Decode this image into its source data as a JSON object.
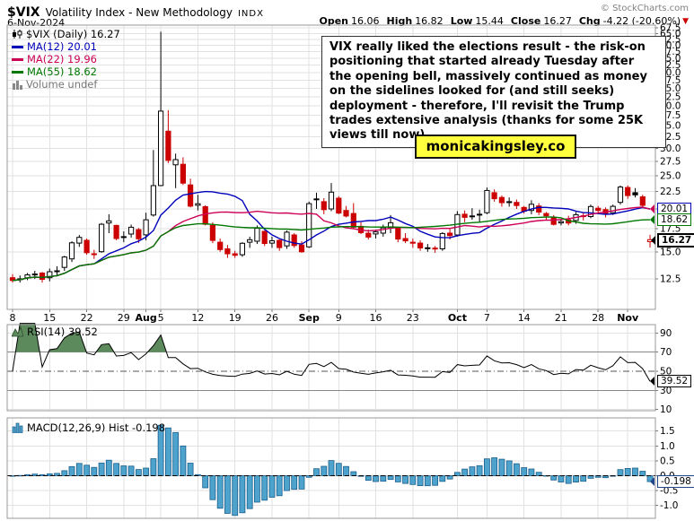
{
  "header": {
    "symbol": "$VIX",
    "title": "Volatility Index - New Methodology",
    "exchange": "INDX",
    "date": "6-Nov-2024",
    "copyright": "© StockCharts.com",
    "quote": {
      "open_label": "Open",
      "open": "16.06",
      "high_label": "High",
      "high": "16.82",
      "low_label": "Low",
      "low": "15.44",
      "close_label": "Close",
      "close": "16.27",
      "chg_label": "Chg",
      "chg": "-4.22 (-20.60%)"
    }
  },
  "legend": {
    "main": "$VIX (Daily) 16.27",
    "ma12": "MA(12) 20.01",
    "ma22": "MA(22) 19.96",
    "ma55": "MA(55) 18.62",
    "volume": "Volume undef"
  },
  "annotation": {
    "text": "VIX really liked the elections result - the risk-on positioning that started already Tuesday after the opening bell, massively continued as money on the sidelines looked for (and still seeks) deployment - therefore, I'll revisit the Trump trades extensive analysis (thanks for some 25K views till now)."
  },
  "watermark": "monicakingsley.co",
  "panels": {
    "rsi_label": "RSI(14) 39.52",
    "macd_label": "MACD(12,26,9) Hist -0.198"
  },
  "badges": {
    "ma12": "20.01",
    "ma55": "18.62",
    "last": "16.27",
    "rsi": "39.52",
    "macd": "-0.198"
  },
  "colors": {
    "candle_down": "#cc0000",
    "candle_up_outline": "#000000",
    "ma12": "#0000bb",
    "ma22": "#cc0055",
    "ma55": "#007700",
    "rsi_line": "#000000",
    "rsi_fill": "#5c8a5c",
    "macd_bar": "#4da3cc",
    "macd_bar_border": "#1b5e8c",
    "grid": "#e2e2e2",
    "panel_border": "#999999",
    "watermark_bg": "#ffff3d",
    "change_arrow": "#cc0000"
  },
  "chart_data": [
    {
      "type": "candlestick",
      "title": "$VIX (Daily)",
      "scale": "log",
      "ylabel": "VIX level",
      "ylim": [
        11.8,
        69.5
      ],
      "y_ticks": [
        12.5,
        15.0,
        17.5,
        20.0,
        22.5,
        25.0,
        27.5,
        30.0,
        32.5,
        35.0,
        37.5,
        40.0,
        42.5,
        45.0,
        47.5,
        50.0,
        52.5,
        55.0,
        57.5,
        60.0,
        62.5,
        65.0,
        67.5
      ],
      "x_ticks": [
        {
          "i": 0,
          "label": "8"
        },
        {
          "i": 5,
          "label": "15"
        },
        {
          "i": 10,
          "label": "22"
        },
        {
          "i": 15,
          "label": "29"
        },
        {
          "i": 18,
          "label": "Aug",
          "bold": true
        },
        {
          "i": 20,
          "label": "5"
        },
        {
          "i": 25,
          "label": "12"
        },
        {
          "i": 30,
          "label": "19"
        },
        {
          "i": 35,
          "label": "26"
        },
        {
          "i": 40,
          "label": "Sep",
          "bold": true
        },
        {
          "i": 44,
          "label": "9"
        },
        {
          "i": 49,
          "label": "16"
        },
        {
          "i": 54,
          "label": "23"
        },
        {
          "i": 60,
          "label": "Oct",
          "bold": true
        },
        {
          "i": 64,
          "label": "7"
        },
        {
          "i": 69,
          "label": "14"
        },
        {
          "i": 74,
          "label": "21"
        },
        {
          "i": 79,
          "label": "28"
        },
        {
          "i": 83,
          "label": "Nov",
          "bold": true
        }
      ],
      "overlays": [
        {
          "name": "MA(12)",
          "period": 12,
          "last": 20.01,
          "color": "#0000bb"
        },
        {
          "name": "MA(22)",
          "period": 22,
          "last": 19.96,
          "color": "#cc0055"
        },
        {
          "name": "MA(55)",
          "period": 55,
          "last": 18.62,
          "color": "#007700"
        }
      ],
      "last_quote": {
        "open": 16.06,
        "high": 16.82,
        "low": 15.44,
        "close": 16.27,
        "change": -4.22,
        "change_pct": -20.6
      },
      "dates": [
        "Jul 8",
        "Jul 9",
        "Jul 10",
        "Jul 11",
        "Jul 12",
        "Jul 15",
        "Jul 16",
        "Jul 17",
        "Jul 18",
        "Jul 19",
        "Jul 22",
        "Jul 23",
        "Jul 24",
        "Jul 25",
        "Jul 26",
        "Jul 29",
        "Jul 30",
        "Jul 31",
        "Aug 1",
        "Aug 2",
        "Aug 5",
        "Aug 6",
        "Aug 7",
        "Aug 8",
        "Aug 9",
        "Aug 12",
        "Aug 13",
        "Aug 14",
        "Aug 15",
        "Aug 16",
        "Aug 19",
        "Aug 20",
        "Aug 21",
        "Aug 22",
        "Aug 23",
        "Aug 26",
        "Aug 27",
        "Aug 28",
        "Aug 29",
        "Aug 30",
        "Sep 3",
        "Sep 4",
        "Sep 5",
        "Sep 6",
        "Sep 9",
        "Sep 10",
        "Sep 11",
        "Sep 12",
        "Sep 13",
        "Sep 16",
        "Sep 17",
        "Sep 18",
        "Sep 19",
        "Sep 20",
        "Sep 23",
        "Sep 24",
        "Sep 25",
        "Sep 26",
        "Sep 27",
        "Sep 30",
        "Oct 1",
        "Oct 2",
        "Oct 3",
        "Oct 4",
        "Oct 7",
        "Oct 8",
        "Oct 9",
        "Oct 10",
        "Oct 11",
        "Oct 14",
        "Oct 15",
        "Oct 16",
        "Oct 17",
        "Oct 18",
        "Oct 21",
        "Oct 22",
        "Oct 23",
        "Oct 24",
        "Oct 25",
        "Oct 28",
        "Oct 29",
        "Oct 30",
        "Oct 31",
        "Nov 1",
        "Nov 4",
        "Nov 5",
        "Nov 6"
      ],
      "ohlc": [
        [
          12.6,
          12.9,
          12.2,
          12.37
        ],
        [
          12.5,
          12.8,
          12.2,
          12.51
        ],
        [
          12.6,
          13.0,
          12.4,
          12.85
        ],
        [
          12.9,
          13.2,
          12.5,
          12.92
        ],
        [
          13.0,
          13.1,
          12.2,
          12.46
        ],
        [
          12.6,
          13.4,
          12.3,
          13.12
        ],
        [
          13.2,
          13.6,
          12.8,
          13.19
        ],
        [
          13.5,
          14.6,
          13.2,
          14.48
        ],
        [
          14.3,
          16.1,
          14.0,
          15.93
        ],
        [
          15.9,
          16.8,
          15.5,
          16.52
        ],
        [
          16.2,
          16.4,
          14.7,
          14.91
        ],
        [
          14.8,
          15.2,
          14.3,
          14.72
        ],
        [
          15.0,
          18.2,
          14.9,
          18.04
        ],
        [
          18.2,
          19.3,
          17.0,
          18.46
        ],
        [
          17.9,
          18.0,
          16.2,
          16.39
        ],
        [
          16.5,
          17.2,
          16.0,
          16.6
        ],
        [
          16.9,
          18.0,
          16.5,
          17.69
        ],
        [
          17.4,
          17.6,
          15.9,
          16.36
        ],
        [
          16.8,
          19.5,
          16.2,
          18.59
        ],
        [
          19.2,
          29.7,
          19.0,
          23.39
        ],
        [
          23.4,
          65.73,
          23.3,
          38.57
        ],
        [
          33.7,
          38.8,
          27.2,
          27.71
        ],
        [
          26.9,
          29.0,
          23.0,
          27.85
        ],
        [
          27.0,
          28.3,
          23.5,
          23.79
        ],
        [
          23.5,
          24.5,
          20.2,
          20.37
        ],
        [
          20.5,
          22.0,
          19.8,
          20.71
        ],
        [
          20.3,
          20.5,
          17.9,
          18.04
        ],
        [
          17.9,
          18.3,
          15.9,
          16.19
        ],
        [
          16.0,
          16.4,
          15.0,
          15.23
        ],
        [
          15.3,
          15.7,
          14.4,
          14.8
        ],
        [
          14.8,
          15.1,
          14.4,
          14.65
        ],
        [
          14.7,
          16.0,
          14.5,
          15.88
        ],
        [
          16.0,
          16.6,
          15.4,
          16.27
        ],
        [
          16.1,
          17.9,
          15.8,
          17.56
        ],
        [
          17.2,
          17.3,
          15.6,
          15.86
        ],
        [
          15.9,
          16.6,
          15.4,
          16.15
        ],
        [
          16.2,
          16.3,
          15.1,
          15.43
        ],
        [
          15.6,
          17.3,
          15.3,
          17.11
        ],
        [
          16.8,
          17.0,
          15.4,
          15.65
        ],
        [
          15.7,
          16.1,
          14.9,
          15.0
        ],
        [
          15.5,
          21.0,
          15.4,
          20.72
        ],
        [
          21.4,
          22.3,
          20.0,
          21.31
        ],
        [
          21.0,
          21.5,
          19.3,
          19.9
        ],
        [
          20.0,
          23.8,
          19.7,
          22.38
        ],
        [
          21.5,
          21.8,
          19.3,
          19.45
        ],
        [
          19.8,
          20.4,
          18.9,
          19.08
        ],
        [
          19.4,
          20.8,
          17.5,
          17.69
        ],
        [
          17.8,
          18.3,
          16.9,
          17.07
        ],
        [
          17.0,
          17.4,
          16.3,
          16.56
        ],
        [
          16.9,
          17.4,
          16.4,
          17.14
        ],
        [
          17.0,
          18.0,
          16.6,
          17.61
        ],
        [
          17.6,
          19.2,
          17.0,
          18.23
        ],
        [
          17.6,
          17.7,
          16.0,
          16.33
        ],
        [
          16.4,
          17.0,
          15.9,
          16.15
        ],
        [
          16.0,
          16.4,
          15.4,
          15.89
        ],
        [
          15.9,
          16.2,
          15.1,
          15.39
        ],
        [
          15.4,
          15.8,
          15.0,
          15.41
        ],
        [
          15.3,
          15.6,
          14.9,
          15.37
        ],
        [
          15.3,
          17.1,
          15.1,
          16.96
        ],
        [
          17.0,
          17.5,
          16.3,
          16.73
        ],
        [
          16.8,
          19.7,
          16.6,
          19.26
        ],
        [
          19.3,
          19.8,
          18.3,
          18.9
        ],
        [
          19.0,
          20.1,
          18.6,
          19.08
        ],
        [
          19.3,
          19.9,
          18.3,
          19.21
        ],
        [
          19.5,
          23.1,
          19.3,
          22.64
        ],
        [
          22.3,
          22.8,
          21.0,
          21.42
        ],
        [
          21.6,
          21.9,
          20.3,
          20.86
        ],
        [
          21.0,
          21.6,
          20.3,
          20.93
        ],
        [
          20.9,
          21.3,
          20.0,
          20.46
        ],
        [
          20.2,
          20.4,
          19.4,
          19.7
        ],
        [
          19.8,
          21.2,
          19.3,
          20.64
        ],
        [
          20.4,
          20.8,
          19.2,
          19.58
        ],
        [
          19.4,
          19.6,
          18.6,
          19.11
        ],
        [
          18.9,
          19.2,
          17.9,
          18.03
        ],
        [
          18.2,
          18.7,
          17.9,
          18.37
        ],
        [
          18.6,
          19.1,
          17.9,
          18.2
        ],
        [
          18.5,
          19.6,
          18.1,
          19.24
        ],
        [
          19.1,
          19.5,
          18.5,
          19.08
        ],
        [
          19.0,
          20.6,
          18.8,
          20.33
        ],
        [
          20.1,
          20.4,
          19.3,
          19.8
        ],
        [
          19.9,
          20.2,
          18.9,
          19.34
        ],
        [
          19.5,
          20.6,
          19.2,
          20.35
        ],
        [
          20.9,
          23.4,
          20.6,
          23.16
        ],
        [
          23.1,
          23.4,
          21.4,
          21.88
        ],
        [
          22.3,
          23.0,
          21.6,
          21.98
        ],
        [
          21.7,
          22.0,
          20.1,
          20.49
        ],
        [
          16.06,
          16.82,
          15.44,
          16.27
        ]
      ]
    },
    {
      "type": "line",
      "name": "RSI(14)",
      "derived_from": "closes of chart_data[0], Wilder RSI period 14",
      "last": 39.52,
      "ylim": [
        0,
        100
      ],
      "y_ticks": [
        90,
        70,
        50,
        30,
        10
      ],
      "guides": {
        "overbought": 70,
        "midline": 50,
        "oversold": 30
      },
      "fill_above": 70
    },
    {
      "type": "bar",
      "name": "MACD(12,26,9) Histogram",
      "derived_from": "closes of chart_data[0], MACD(12,26,9) histogram",
      "last": -0.198,
      "y_ticks": [
        1.5,
        1.0,
        0.5,
        0.0,
        -0.5,
        -1.0
      ],
      "zero_line": "dashed"
    }
  ]
}
